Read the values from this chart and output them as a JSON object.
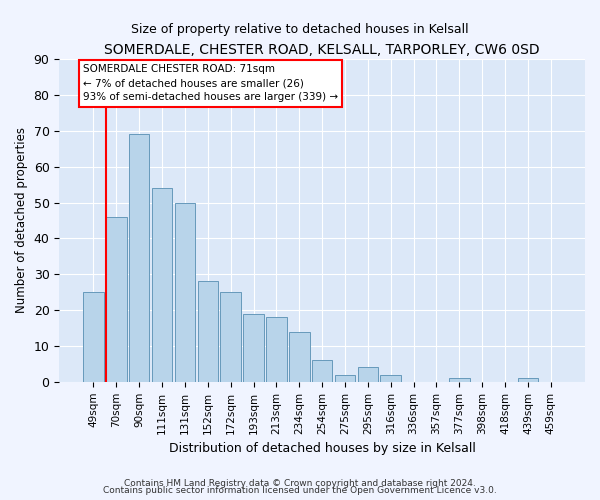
{
  "title": "SOMERDALE, CHESTER ROAD, KELSALL, TARPORLEY, CW6 0SD",
  "subtitle": "Size of property relative to detached houses in Kelsall",
  "xlabel": "Distribution of detached houses by size in Kelsall",
  "ylabel": "Number of detached properties",
  "bar_labels": [
    "49sqm",
    "70sqm",
    "90sqm",
    "111sqm",
    "131sqm",
    "152sqm",
    "172sqm",
    "193sqm",
    "213sqm",
    "234sqm",
    "254sqm",
    "275sqm",
    "295sqm",
    "316sqm",
    "336sqm",
    "357sqm",
    "377sqm",
    "398sqm",
    "418sqm",
    "439sqm",
    "459sqm"
  ],
  "bar_values": [
    25,
    46,
    69,
    54,
    50,
    28,
    25,
    19,
    18,
    14,
    6,
    2,
    4,
    2,
    0,
    0,
    1,
    0,
    0,
    1,
    0
  ],
  "bar_color": "#b8d4ea",
  "bar_edge_color": "#6699bb",
  "redline_index": 1,
  "annotation_title": "SOMERDALE CHESTER ROAD: 71sqm",
  "annotation_line1": "← 7% of detached houses are smaller (26)",
  "annotation_line2": "93% of semi-detached houses are larger (339) →",
  "ylim": [
    0,
    90
  ],
  "yticks": [
    0,
    10,
    20,
    30,
    40,
    50,
    60,
    70,
    80,
    90
  ],
  "footer1": "Contains HM Land Registry data © Crown copyright and database right 2024.",
  "footer2": "Contains public sector information licensed under the Open Government Licence v3.0.",
  "background_color": "#f0f4ff",
  "plot_background": "#dce8f8"
}
